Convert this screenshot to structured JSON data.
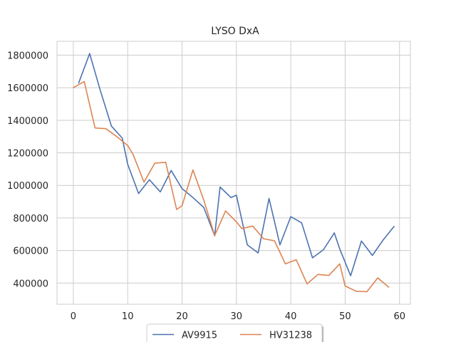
{
  "chart_data": {
    "type": "line",
    "title": "LYSO DxA",
    "xlabel": "",
    "ylabel": "",
    "xlim": [
      -3,
      62
    ],
    "ylim": [
      270000,
      1885000
    ],
    "xticks": [
      0,
      10,
      20,
      30,
      40,
      50,
      60
    ],
    "yticks": [
      400000,
      600000,
      800000,
      1000000,
      1200000,
      1400000,
      1600000,
      1800000
    ],
    "grid": true,
    "legend_position": "bottom-center",
    "series": [
      {
        "name": "AV9915",
        "color": "#4c72b0",
        "x": [
          1,
          3,
          5,
          7,
          9,
          10,
          12,
          14,
          16,
          18,
          20,
          22,
          24,
          26,
          27,
          29,
          30,
          32,
          34,
          36,
          38,
          40,
          42,
          44,
          46,
          48,
          49,
          51,
          53,
          55,
          57,
          59
        ],
        "y": [
          1630000,
          1810000,
          1580000,
          1365000,
          1290000,
          1130000,
          950000,
          1035000,
          960000,
          1092000,
          980000,
          925000,
          865000,
          690000,
          990000,
          925000,
          940000,
          635000,
          585000,
          920000,
          635000,
          808000,
          770000,
          555000,
          605000,
          708000,
          610000,
          445000,
          658000,
          570000,
          665000,
          748000
        ]
      },
      {
        "name": "HV31238",
        "color": "#dd8452",
        "x": [
          0,
          2,
          4,
          6,
          8,
          10,
          11,
          13,
          15,
          17,
          19,
          20,
          22,
          24,
          26,
          28,
          30,
          31,
          33,
          35,
          37,
          39,
          41,
          43,
          45,
          47,
          49,
          50,
          52,
          54,
          56,
          58
        ],
        "y": [
          1600000,
          1638000,
          1353000,
          1348000,
          1300000,
          1245000,
          1190000,
          1020000,
          1137000,
          1142000,
          852000,
          875000,
          1095000,
          910000,
          692000,
          843000,
          776000,
          735000,
          750000,
          672000,
          660000,
          518000,
          543000,
          395000,
          453000,
          447000,
          518000,
          382000,
          350000,
          347000,
          432000,
          375000
        ]
      }
    ]
  }
}
